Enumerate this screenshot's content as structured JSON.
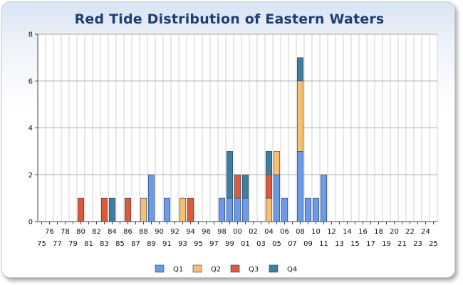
{
  "chart_data": {
    "type": "bar",
    "stacked": true,
    "title": "Red Tide Distribution of Eastern Waters",
    "xlabel": "",
    "ylabel": "",
    "ylim": [
      0,
      8
    ],
    "yticks": [
      "0",
      "2",
      "4",
      "6",
      "8"
    ],
    "grid": true,
    "legend_position": "bottom",
    "categories": [
      "75",
      "76",
      "77",
      "78",
      "79",
      "80",
      "81",
      "82",
      "83",
      "84",
      "85",
      "86",
      "87",
      "88",
      "89",
      "90",
      "91",
      "92",
      "93",
      "94",
      "95",
      "96",
      "97",
      "98",
      "99",
      "00",
      "01",
      "02",
      "03",
      "04",
      "05",
      "06",
      "07",
      "08",
      "09",
      "10",
      "11",
      "12",
      "13",
      "14",
      "15",
      "16",
      "17",
      "18",
      "19",
      "20",
      "21",
      "22",
      "23",
      "24",
      "25"
    ],
    "series": [
      {
        "name": "Q1",
        "color": "#6b9be8",
        "values": [
          0,
          0,
          0,
          0,
          0,
          0,
          0,
          0,
          0,
          0,
          0,
          0,
          0,
          0,
          2,
          0,
          1,
          0,
          0,
          0,
          0,
          0,
          0,
          1,
          1,
          1,
          1,
          0,
          0,
          0,
          2,
          1,
          0,
          3,
          1,
          1,
          2,
          0,
          0,
          0,
          0,
          0,
          0,
          0,
          0,
          0,
          0,
          0,
          0,
          0,
          0
        ]
      },
      {
        "name": "Q2",
        "color": "#f5c070",
        "values": [
          0,
          0,
          0,
          0,
          0,
          0,
          0,
          0,
          0,
          0,
          0,
          0,
          0,
          1,
          0,
          0,
          0,
          0,
          1,
          0,
          0,
          0,
          0,
          0,
          0,
          0,
          0,
          0,
          0,
          1,
          1,
          0,
          0,
          3,
          0,
          0,
          0,
          0,
          0,
          0,
          0,
          0,
          0,
          0,
          0,
          0,
          0,
          0,
          0,
          0,
          0
        ]
      },
      {
        "name": "Q3",
        "color": "#dd5a38",
        "values": [
          0,
          0,
          0,
          0,
          0,
          1,
          0,
          0,
          1,
          0,
          0,
          1,
          0,
          0,
          0,
          0,
          0,
          0,
          0,
          1,
          0,
          0,
          0,
          0,
          0,
          1,
          0,
          0,
          0,
          1,
          0,
          0,
          0,
          0,
          0,
          0,
          0,
          0,
          0,
          0,
          0,
          0,
          0,
          0,
          0,
          0,
          0,
          0,
          0,
          0,
          0
        ]
      },
      {
        "name": "Q4",
        "color": "#3f7f9c",
        "values": [
          0,
          0,
          0,
          0,
          0,
          0,
          0,
          0,
          0,
          1,
          0,
          0,
          0,
          0,
          0,
          0,
          0,
          0,
          0,
          0,
          0,
          0,
          0,
          0,
          2,
          0,
          1,
          0,
          0,
          1,
          0,
          0,
          0,
          1,
          0,
          0,
          0,
          0,
          0,
          0,
          0,
          0,
          0,
          0,
          0,
          0,
          0,
          0,
          0,
          0,
          0
        ]
      }
    ]
  }
}
